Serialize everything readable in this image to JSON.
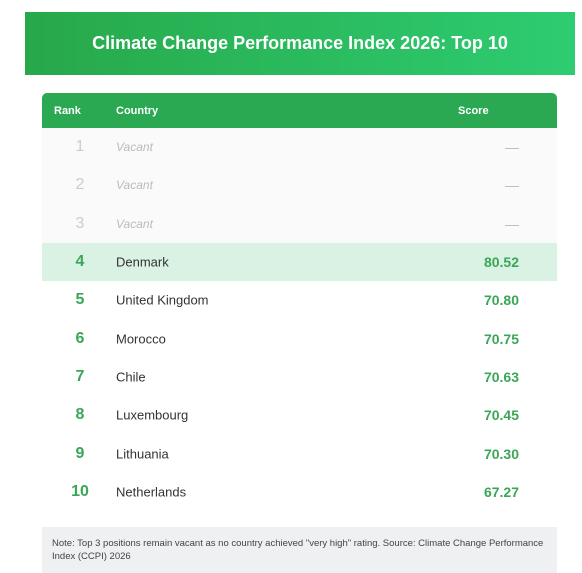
{
  "header": {
    "title": "Climate Change Performance Index 2026: Top 10"
  },
  "table": {
    "columns": [
      "Rank",
      "Country",
      "Score"
    ],
    "rows": [
      {
        "rank": "1",
        "country": "Vacant",
        "score": "—",
        "vacant": true
      },
      {
        "rank": "2",
        "country": "Vacant",
        "score": "—",
        "vacant": true
      },
      {
        "rank": "3",
        "country": "Vacant",
        "score": "—",
        "vacant": true
      },
      {
        "rank": "4",
        "country": "Denmark",
        "score": "80.52",
        "highlight": true
      },
      {
        "rank": "5",
        "country": "United Kingdom",
        "score": "70.80"
      },
      {
        "rank": "6",
        "country": "Morocco",
        "score": "70.75"
      },
      {
        "rank": "7",
        "country": "Chile",
        "score": "70.63"
      },
      {
        "rank": "8",
        "country": "Luxembourg",
        "score": "70.45"
      },
      {
        "rank": "9",
        "country": "Lithuania",
        "score": "70.30"
      },
      {
        "rank": "10",
        "country": "Netherlands",
        "score": "67.27"
      }
    ]
  },
  "note": "Note: Top 3 positions remain vacant as no country achieved \"very high\" rating. Source: Climate Change Performance Index (CCPI) 2026"
}
